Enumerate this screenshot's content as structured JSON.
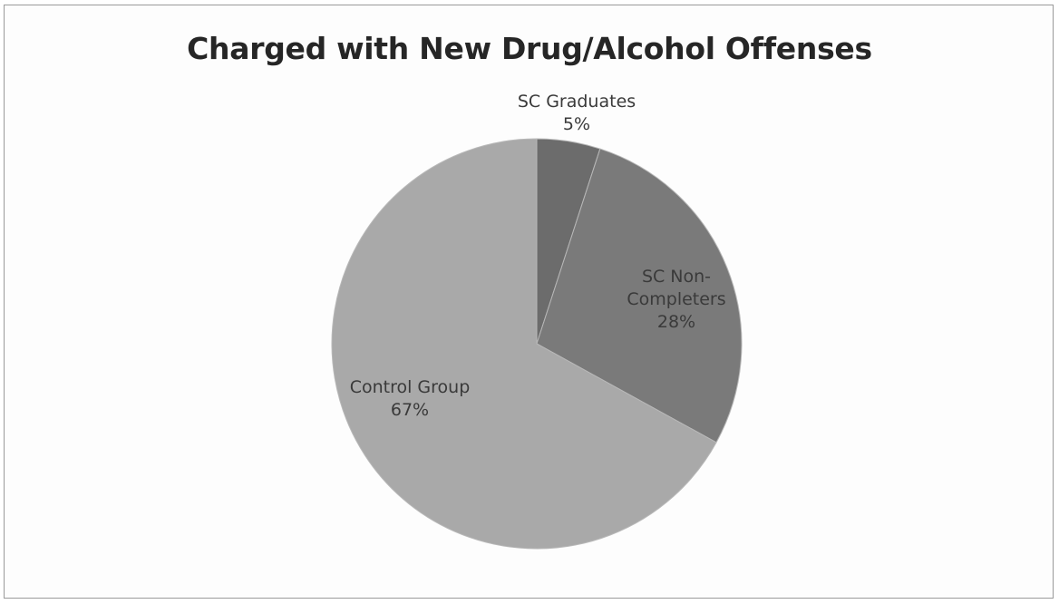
{
  "chart_data": {
    "type": "pie",
    "title": "Charged with New Drug/Alcohol Offenses",
    "slices": [
      {
        "label": "SC Graduates",
        "label_lines": [
          "SC Graduates"
        ],
        "value": 5,
        "value_label": "5%",
        "color": "#6c6c6c"
      },
      {
        "label": "SC Non-Completers",
        "label_lines": [
          "SC Non-",
          "Completers"
        ],
        "value": 28,
        "value_label": "28%",
        "color": "#7a7a7a"
      },
      {
        "label": "Control Group",
        "label_lines": [
          "Control Group"
        ],
        "value": 67,
        "value_label": "67%",
        "color": "#a9a9a9"
      }
    ],
    "start_angle": "12 o'clock",
    "direction": "clockwise",
    "legend": "none"
  }
}
